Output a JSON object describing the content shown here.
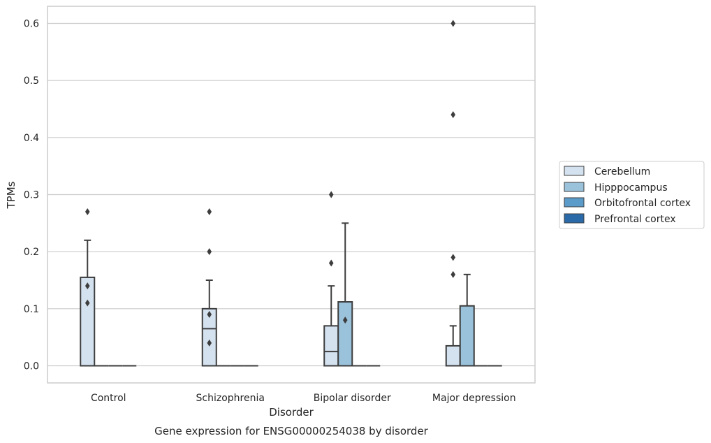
{
  "chart_data": {
    "type": "box",
    "xlabel": "Disorder",
    "ylabel": "TPMs",
    "caption": "Gene expression for ENSG00000254038 by disorder",
    "categories": [
      "Control",
      "Schizophrenia",
      "Bipolar disorder",
      "Major depression"
    ],
    "yticks": [
      "0.0",
      "0.1",
      "0.2",
      "0.3",
      "0.4",
      "0.5",
      "0.6"
    ],
    "ylim": [
      -0.03,
      0.63
    ],
    "grid": true,
    "legend_position": "right",
    "series": [
      {
        "name": "Cerebellum",
        "color": "#d4e2ef",
        "boxes": [
          {
            "q1": 0.0,
            "median": 0.0,
            "q3": 0.155,
            "whisker_low": 0.0,
            "whisker_high": 0.22,
            "outliers": [
              0.27,
              0.14,
              0.11
            ]
          },
          {
            "q1": 0.0,
            "median": 0.065,
            "q3": 0.1,
            "whisker_low": 0.0,
            "whisker_high": 0.15,
            "outliers": [
              0.27,
              0.2,
              0.09,
              0.04
            ]
          },
          {
            "q1": 0.0,
            "median": 0.025,
            "q3": 0.07,
            "whisker_low": 0.0,
            "whisker_high": 0.14,
            "outliers": [
              0.3,
              0.18
            ]
          },
          {
            "q1": 0.0,
            "median": 0.0,
            "q3": 0.035,
            "whisker_low": 0.0,
            "whisker_high": 0.07,
            "outliers": [
              0.44,
              0.6,
              0.19,
              0.16
            ]
          }
        ]
      },
      {
        "name": "Hipppocampus",
        "color": "#9ac2db",
        "boxes": [
          {
            "q1": 0.0,
            "median": 0.0,
            "q3": 0.0,
            "whisker_low": 0.0,
            "whisker_high": 0.0,
            "outliers": []
          },
          {
            "q1": 0.0,
            "median": 0.0,
            "q3": 0.0,
            "whisker_low": 0.0,
            "whisker_high": 0.0,
            "outliers": []
          },
          {
            "q1": 0.0,
            "median": 0.0,
            "q3": 0.112,
            "whisker_low": 0.0,
            "whisker_high": 0.25,
            "outliers": [
              0.08
            ]
          },
          {
            "q1": 0.0,
            "median": 0.0,
            "q3": 0.105,
            "whisker_low": 0.0,
            "whisker_high": 0.16,
            "outliers": []
          }
        ]
      },
      {
        "name": "Orbitofrontal cortex",
        "color": "#5a9bc9",
        "boxes": [
          {
            "q1": 0.0,
            "median": 0.0,
            "q3": 0.0,
            "whisker_low": 0.0,
            "whisker_high": 0.0,
            "outliers": []
          },
          {
            "q1": 0.0,
            "median": 0.0,
            "q3": 0.0,
            "whisker_low": 0.0,
            "whisker_high": 0.0,
            "outliers": []
          },
          {
            "q1": 0.0,
            "median": 0.0,
            "q3": 0.0,
            "whisker_low": 0.0,
            "whisker_high": 0.0,
            "outliers": []
          },
          {
            "q1": 0.0,
            "median": 0.0,
            "q3": 0.0,
            "whisker_low": 0.0,
            "whisker_high": 0.0,
            "outliers": []
          }
        ]
      },
      {
        "name": "Prefrontal cortex",
        "color": "#2a6aa8",
        "boxes": [
          {
            "q1": 0.0,
            "median": 0.0,
            "q3": 0.0,
            "whisker_low": 0.0,
            "whisker_high": 0.0,
            "outliers": []
          },
          {
            "q1": 0.0,
            "median": 0.0,
            "q3": 0.0,
            "whisker_low": 0.0,
            "whisker_high": 0.0,
            "outliers": []
          },
          {
            "q1": 0.0,
            "median": 0.0,
            "q3": 0.0,
            "whisker_low": 0.0,
            "whisker_high": 0.0,
            "outliers": []
          },
          {
            "q1": 0.0,
            "median": 0.0,
            "q3": 0.0,
            "whisker_low": 0.0,
            "whisker_high": 0.0,
            "outliers": []
          }
        ]
      }
    ]
  }
}
